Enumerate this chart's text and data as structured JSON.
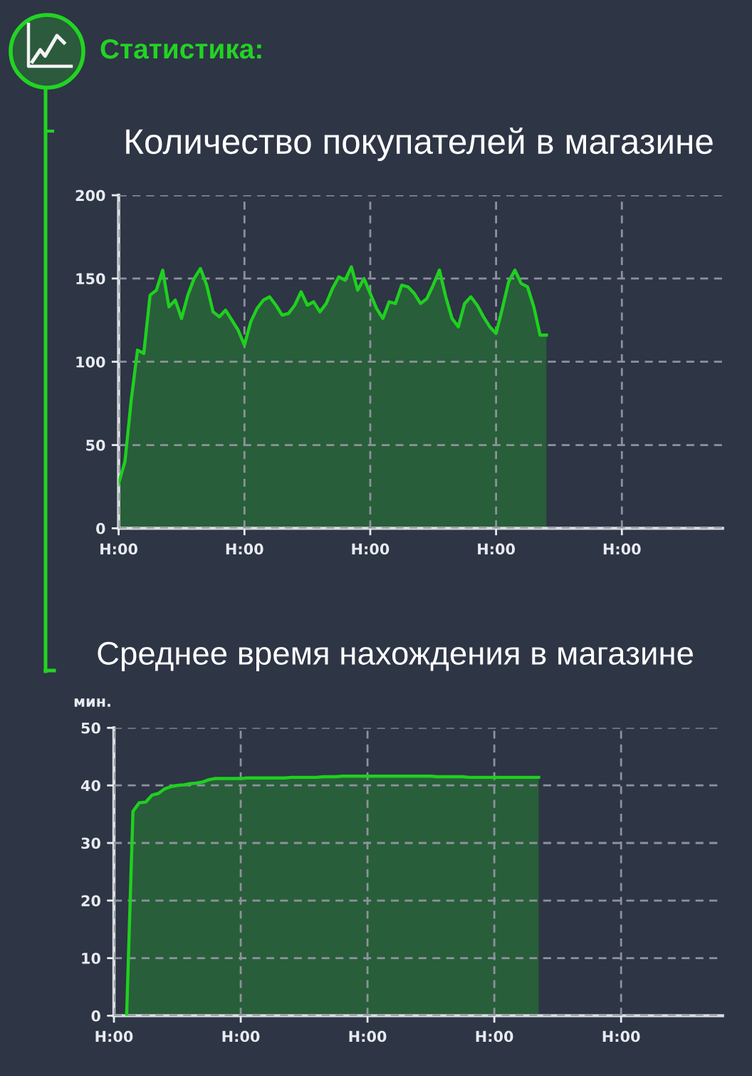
{
  "chart_data": [
    {
      "type": "area",
      "title": "Количество покупателей в магазине",
      "annotations": [
        "Статистика:"
      ],
      "color": "#1fd01f",
      "categories": [
        "H:00",
        null,
        null,
        null,
        null,
        null,
        null,
        null,
        null,
        null,
        null,
        null,
        null,
        null,
        null,
        null,
        null,
        null,
        null,
        null,
        "H:00",
        null,
        null,
        null,
        null,
        null,
        null,
        null,
        null,
        null,
        null,
        null,
        null,
        null,
        null,
        null,
        null,
        null,
        null,
        null,
        "H:00",
        null,
        null,
        null,
        null,
        null,
        null,
        null,
        null,
        null,
        null,
        null,
        null,
        null,
        null,
        null,
        null,
        null,
        null,
        null,
        "H:00",
        null,
        null,
        null,
        null,
        null,
        null,
        null,
        null,
        null,
        null,
        null,
        null,
        null,
        null,
        null,
        null,
        null,
        null,
        null,
        "H:00",
        null,
        null,
        null,
        null,
        null,
        null,
        null,
        null,
        null,
        null,
        null,
        null,
        null,
        null,
        null,
        null
      ],
      "values": [
        27,
        40,
        77,
        107,
        105,
        140,
        143,
        155,
        133,
        137,
        126,
        140,
        150,
        156,
        146,
        130,
        127,
        131,
        125,
        119,
        110,
        124,
        132,
        137,
        139,
        134,
        128,
        129,
        134,
        142,
        134,
        136,
        130,
        135,
        144,
        151,
        149,
        157,
        143,
        150,
        141,
        132,
        126,
        136,
        135,
        146,
        145,
        141,
        135,
        138,
        146,
        155,
        139,
        126,
        121,
        135,
        139,
        134,
        127,
        121,
        117,
        132,
        148,
        155,
        147,
        145,
        133,
        116,
        116,
        null,
        null,
        null,
        null,
        null,
        null,
        null,
        null,
        null,
        null,
        null,
        null,
        null,
        null,
        null,
        null,
        null,
        null,
        null,
        null,
        null,
        null,
        null,
        null,
        null,
        null,
        null,
        null
      ],
      "ylim": [
        0,
        200
      ],
      "yticks": [
        0,
        50,
        100,
        150,
        200
      ],
      "grid": true
    },
    {
      "type": "area",
      "title": "Среднее время нахождения в магазине",
      "ylabel": "мин.",
      "color": "#1fd01f",
      "categories": [
        "H:00",
        null,
        null,
        null,
        null,
        null,
        null,
        null,
        null,
        null,
        null,
        null,
        null,
        null,
        null,
        null,
        null,
        null,
        null,
        null,
        "H:00",
        null,
        null,
        null,
        null,
        null,
        null,
        null,
        null,
        null,
        null,
        null,
        null,
        null,
        null,
        null,
        null,
        null,
        null,
        null,
        "H:00",
        null,
        null,
        null,
        null,
        null,
        null,
        null,
        null,
        null,
        null,
        null,
        null,
        null,
        null,
        null,
        null,
        null,
        null,
        null,
        "H:00",
        null,
        null,
        null,
        null,
        null,
        null,
        null,
        null,
        null,
        null,
        null,
        null,
        null,
        null,
        null,
        null,
        null,
        null,
        null,
        "H:00",
        null,
        null,
        null,
        null,
        null,
        null,
        null,
        null,
        null,
        null,
        null,
        null,
        null,
        null,
        null,
        null
      ],
      "values": [
        null,
        null,
        0,
        35.5,
        37,
        37.1,
        38.3,
        38.6,
        39.4,
        39.8,
        40,
        40.1,
        40.3,
        40.4,
        40.6,
        41,
        41.2,
        41.2,
        41.2,
        41.2,
        41.2,
        41.3,
        41.3,
        41.3,
        41.3,
        41.3,
        41.3,
        41.3,
        41.4,
        41.4,
        41.4,
        41.4,
        41.4,
        41.5,
        41.5,
        41.5,
        41.6,
        41.6,
        41.6,
        41.6,
        41.6,
        41.6,
        41.6,
        41.6,
        41.6,
        41.6,
        41.6,
        41.6,
        41.6,
        41.6,
        41.6,
        41.5,
        41.5,
        41.5,
        41.5,
        41.5,
        41.4,
        41.4,
        41.4,
        41.4,
        41.4,
        41.4,
        41.4,
        41.4,
        41.4,
        41.4,
        41.4,
        41.4,
        null,
        null,
        null,
        null,
        null,
        null,
        null,
        null,
        null,
        null,
        null,
        null,
        null,
        null,
        null,
        null,
        null,
        null,
        null,
        null,
        null,
        null,
        null,
        null,
        null,
        null,
        null,
        null,
        null
      ],
      "ylim": [
        0,
        50
      ],
      "yticks": [
        0,
        10,
        20,
        30,
        40,
        50
      ],
      "grid": true
    }
  ]
}
